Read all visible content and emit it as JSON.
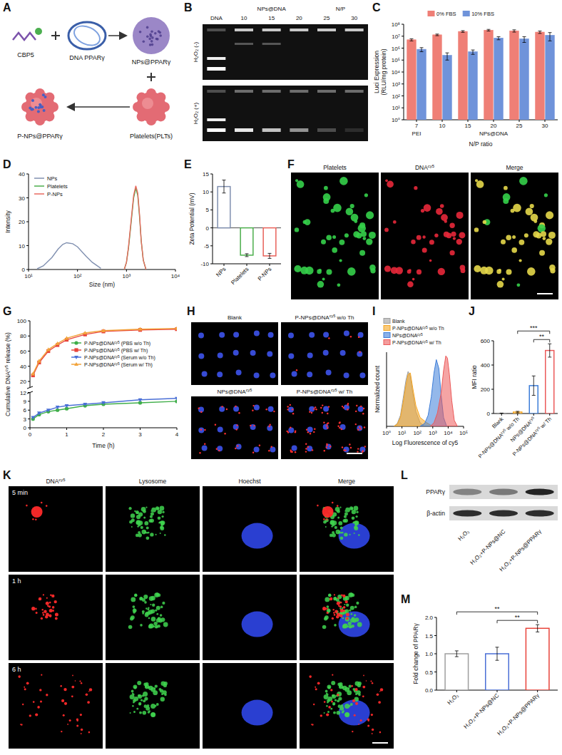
{
  "schematic": {
    "panel": "A",
    "labels": {
      "peptide": "CBP5",
      "plasmid": "DNA PPARγ",
      "nanoparticle": "NPs@PPARγ",
      "platelet": "Platelets(PLTs)",
      "product": "P-NPs@PPARγ"
    }
  },
  "gel": {
    "panel": "B",
    "marker_lane": "DNA",
    "group": "NPs@DNA",
    "ratio": "N/P",
    "lanes": [
      10,
      15,
      20,
      25,
      30
    ],
    "conditions": [
      "H₂O₂ (-)",
      "H₂O₂ (+)"
    ]
  },
  "chart_data": [
    {
      "panel": "C",
      "type": "bar",
      "y_label": "Luci Expression (RLU/mg protein)",
      "x_label": "N/P ratio",
      "categories": [
        "7",
        "10",
        "15",
        "20",
        "25",
        "30"
      ],
      "category_groups": [
        "PEI",
        "NPs@DNA",
        "NPs@DNA",
        "NPs@DNA",
        "NPs@DNA",
        "NPs@DNA"
      ],
      "log": "y",
      "ylim": [
        1,
        100000000
      ],
      "yticks": [
        {
          "value": 1,
          "label": "10⁰"
        },
        {
          "value": 10,
          "label": "10¹"
        },
        {
          "value": 100,
          "label": "10²"
        },
        {
          "value": 1000,
          "label": "10³"
        },
        {
          "value": 10000,
          "label": "10⁴"
        },
        {
          "value": 100000,
          "label": "10⁵"
        },
        {
          "value": 1000000,
          "label": "10⁶"
        },
        {
          "value": 10000000,
          "label": "10⁷"
        },
        {
          "value": 100000000,
          "label": "10⁸"
        }
      ],
      "legend": "top",
      "series": [
        {
          "name": "0% FBS",
          "color": "#ef7f76",
          "values": [
            5000000,
            13000000,
            25000000,
            32000000,
            28000000,
            22000000
          ],
          "errors": [
            1000000,
            2000000,
            4000000,
            5000000,
            6000000,
            5000000
          ]
        },
        {
          "name": "10% FBS",
          "color": "#6f93da",
          "values": [
            800000,
            250000,
            500000,
            7000000,
            6000000,
            12000000
          ],
          "errors": [
            300000,
            150000,
            200000,
            2000000,
            3000000,
            8000000
          ]
        }
      ]
    },
    {
      "panel": "D",
      "type": "line",
      "x_label": "Size (nm)",
      "y_label": "Intensity",
      "log": "x",
      "xlim": [
        10,
        10000
      ],
      "xticks": [
        {
          "value": 10,
          "label": "10¹"
        },
        {
          "value": 100,
          "label": "10²"
        },
        {
          "value": 1000,
          "label": "10³"
        },
        {
          "value": 10000,
          "label": "10⁴"
        }
      ],
      "ylim": [
        0,
        40
      ],
      "yticks": [
        0,
        10,
        20,
        30,
        40
      ],
      "legend": "top-left",
      "series": [
        {
          "name": "NPs",
          "color": "#8090b0",
          "x": [
            15,
            20,
            30,
            40,
            50,
            60,
            80,
            100,
            150,
            200,
            300
          ],
          "values": [
            0.3,
            1.5,
            5,
            8.5,
            10.5,
            11.2,
            10.8,
            9.5,
            5.5,
            3,
            0.5
          ]
        },
        {
          "name": "Platelets",
          "color": "#4cae4c",
          "x": [
            900,
            1000,
            1100,
            1250,
            1400,
            1550,
            1700,
            1850,
            2000,
            2200,
            2500
          ],
          "values": [
            0,
            3,
            9,
            20,
            30,
            34,
            31,
            22,
            12,
            4,
            0
          ]
        },
        {
          "name": "P-NPs",
          "color": "#ea6a60",
          "x": [
            900,
            1000,
            1100,
            1250,
            1400,
            1550,
            1700,
            1850,
            2000,
            2200,
            2500
          ],
          "values": [
            0,
            3,
            9.5,
            21,
            31,
            35,
            32,
            23,
            12,
            4,
            0
          ]
        }
      ]
    },
    {
      "panel": "E",
      "type": "bar",
      "y_label": "Zeta Potential (mV)",
      "categories": [
        "NPs",
        "Platelets",
        "P-NPs"
      ],
      "values": [
        11.5,
        -7.6,
        -7.8
      ],
      "errors": [
        1.8,
        0.4,
        0.7
      ],
      "colors": [
        "#8090b0",
        "#4cae4c",
        "#e8625a"
      ],
      "ylim": [
        -10,
        15
      ],
      "yticks": [
        -10,
        -5,
        0,
        5,
        10,
        15
      ]
    },
    {
      "panel": "G",
      "type": "line",
      "x_label": "Time (h)",
      "y_label": "Cumulative DNAcy5 release (%)",
      "x": [
        0.083,
        0.25,
        0.5,
        0.75,
        1,
        1.5,
        2,
        3,
        4
      ],
      "xlim": [
        0,
        4
      ],
      "xticks": [
        0,
        1,
        2,
        3,
        4
      ],
      "ylim": [
        0,
        100
      ],
      "ybreak": 12,
      "yticks": [
        0,
        3,
        6,
        9,
        12,
        20,
        40,
        60,
        80,
        100
      ],
      "legend": "right",
      "series": [
        {
          "name": "P-NPs@DNAcy5 (PBS w/o Th)",
          "color": "#3fae49",
          "marker": "circle",
          "values": [
            3,
            4.5,
            5.5,
            6,
            6.5,
            7.5,
            8,
            8.5,
            9
          ]
        },
        {
          "name": "P-NPs@DNAcy5 (PBS w/ Th)",
          "color": "#e8433a",
          "marker": "square",
          "values": [
            28,
            45,
            60,
            68,
            75,
            82,
            86,
            88,
            89
          ]
        },
        {
          "name": "P-NPs@DNAcy5 (Serum w/o Th)",
          "color": "#4a6fd6",
          "marker": "triangle-down",
          "values": [
            3.5,
            5,
            6,
            7,
            7.5,
            8,
            8.5,
            9.5,
            10
          ]
        },
        {
          "name": "P-NPs@DNAcy5 (Serum w/ Th)",
          "color": "#f2a33a",
          "marker": "triangle-up",
          "values": [
            30,
            47,
            62,
            70,
            77,
            84,
            87,
            89,
            90
          ]
        }
      ]
    },
    {
      "panel": "I",
      "type": "area",
      "x_label": "Log Fluorescence of cy5",
      "y_label": "Normalized count",
      "log": "x",
      "xlim": [
        1,
        100000
      ],
      "xticks": [
        {
          "value": 1,
          "label": "10⁰"
        },
        {
          "value": 10,
          "label": "10¹"
        },
        {
          "value": 100,
          "label": "10²"
        },
        {
          "value": 1000,
          "label": "10³"
        },
        {
          "value": 10000,
          "label": "10⁴"
        },
        {
          "value": 100000,
          "label": "10⁵"
        }
      ],
      "ylim": [
        0,
        100
      ],
      "tick_labels": "x",
      "legend": "top",
      "series": [
        {
          "name": "Blank",
          "color": "#9e9e9e",
          "x": [
            3,
            5,
            8,
            12,
            18,
            25,
            35,
            50,
            80,
            150,
            300
          ],
          "values": [
            0,
            4,
            15,
            38,
            62,
            74,
            68,
            45,
            20,
            5,
            0
          ]
        },
        {
          "name": "P-NPs@DNAcy5 w/o Th",
          "color": "#f5a623",
          "x": [
            3,
            5,
            8,
            12,
            18,
            25,
            35,
            50,
            80,
            150,
            400,
            1000
          ],
          "values": [
            0,
            3,
            12,
            32,
            55,
            70,
            72,
            52,
            28,
            12,
            5,
            0
          ]
        },
        {
          "name": "NPs@DNAcy5",
          "color": "#3d7dd8",
          "x": [
            150,
            300,
            500,
            800,
            1200,
            1700,
            2500,
            3500,
            5000,
            8000
          ],
          "values": [
            0,
            4,
            15,
            40,
            72,
            90,
            78,
            42,
            12,
            0
          ]
        },
        {
          "name": "P-NPs@DNAcy5 w/ Th",
          "color": "#ec5a5a",
          "x": [
            700,
            1200,
            2000,
            3500,
            5000,
            7000,
            9000,
            12000,
            17000,
            25000,
            40000
          ],
          "values": [
            0,
            5,
            18,
            45,
            75,
            95,
            92,
            70,
            35,
            8,
            0
          ]
        }
      ]
    },
    {
      "panel": "J",
      "type": "bar",
      "y_label": "MFI ratio",
      "categories": [
        "Blank",
        "P-NPs@DNAcy5 w/o Th",
        "NPs@DNAcy5",
        "P-NPs@DNAcy5 w/ Th"
      ],
      "values": [
        2,
        12,
        230,
        520
      ],
      "errors": [
        1,
        6,
        80,
        55
      ],
      "colors": [
        "#9e9e9e",
        "#f5a623",
        "#3d7dd8",
        "#ec5a5a"
      ],
      "ylim": [
        0,
        600
      ],
      "yticks": [
        0,
        200,
        400,
        600
      ],
      "annotations": [
        {
          "text": "***",
          "between": [
            1,
            3
          ]
        },
        {
          "text": "**",
          "between": [
            2,
            3
          ]
        }
      ]
    },
    {
      "panel": "M",
      "type": "bar",
      "y_label": "Fold change of PPARγ",
      "categories": [
        "H₂O₂",
        "H₂O₂+P-NPs@NC",
        "H₂O₂+P-NPs@PPARγ"
      ],
      "values": [
        1.0,
        1.0,
        1.7
      ],
      "errors": [
        0.08,
        0.18,
        0.1
      ],
      "colors": [
        "#9e9e9e",
        "#4a6fd6",
        "#e8433a"
      ],
      "ylim": [
        0,
        2
      ],
      "yticks": [
        {
          "value": 0,
          "label": "0.0"
        },
        0.5,
        {
          "value": 1,
          "label": "1.0"
        },
        1.5,
        {
          "value": 2,
          "label": "2.0"
        }
      ],
      "annotations": [
        {
          "text": "**",
          "between": [
            0,
            2
          ]
        },
        {
          "text": "**",
          "between": [
            1,
            2
          ]
        }
      ]
    }
  ],
  "platelet_imaging": {
    "panel": "F",
    "channels": [
      "Platelets",
      "DNAcy5",
      "Merge"
    ]
  },
  "uptake_imaging": {
    "panel": "H",
    "conditions": [
      "Blank",
      "P-NPs@DNAcy5 w/o Th",
      "NPs@DNAcy5",
      "P-NPs@DNAcy5 w/ Th"
    ]
  },
  "lysosome_imaging": {
    "panel": "K",
    "channels": [
      "DNAcy5",
      "Lysosome",
      "Hoechst",
      "Merge"
    ],
    "times": [
      "5 min",
      "1 h",
      "6 h"
    ]
  },
  "western_blot": {
    "panel": "L",
    "proteins": [
      "PPARγ",
      "β-actin"
    ],
    "lanes": [
      "H₂O₂",
      "H₂O₂+P-NPs@NC",
      "H₂O₂+P-NPs@PPARγ"
    ]
  }
}
